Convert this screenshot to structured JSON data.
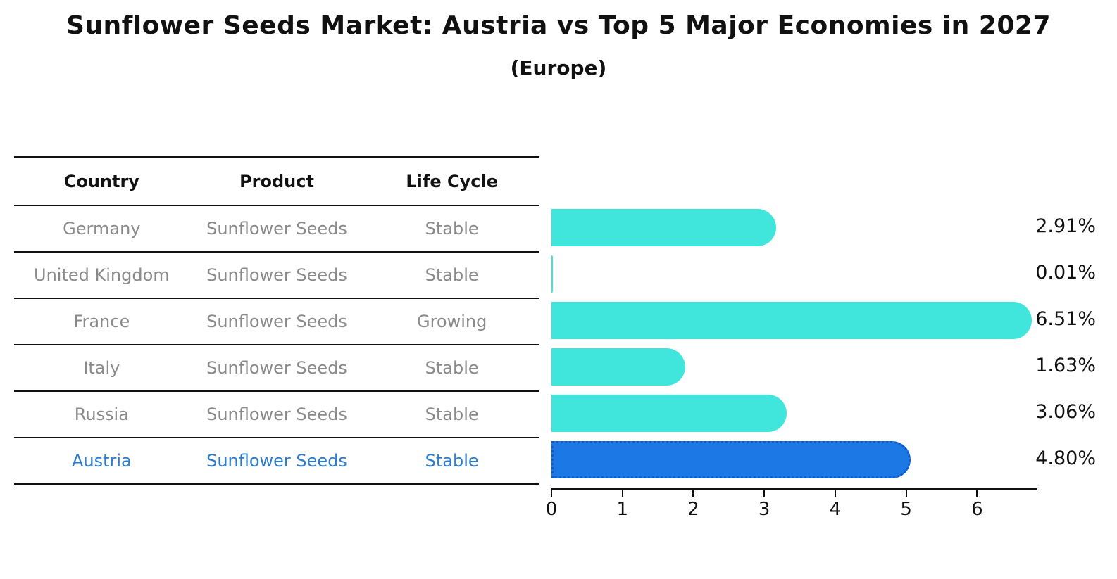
{
  "title": "Sunflower Seeds Market: Austria vs Top 5 Major Economies in 2027",
  "subtitle": "(Europe)",
  "table": {
    "headers": [
      "Country",
      "Product",
      "Life Cycle"
    ],
    "rows": [
      {
        "country": "Germany",
        "product": "Sunflower Seeds",
        "life_cycle": "Stable",
        "highlight": false
      },
      {
        "country": "United Kingdom",
        "product": "Sunflower Seeds",
        "life_cycle": "Stable",
        "highlight": false
      },
      {
        "country": "France",
        "product": "Sunflower Seeds",
        "life_cycle": "Growing",
        "highlight": false
      },
      {
        "country": "Italy",
        "product": "Sunflower Seeds",
        "life_cycle": "Stable",
        "highlight": false
      },
      {
        "country": "Russia",
        "product": "Sunflower Seeds",
        "life_cycle": "Stable",
        "highlight": false
      },
      {
        "country": "Austria",
        "product": "Sunflower Seeds",
        "life_cycle": "Stable",
        "highlight": true
      }
    ]
  },
  "chart_data": {
    "type": "bar",
    "orientation": "horizontal",
    "title": "Sunflower Seeds Market: Austria vs Top 5 Major Economies in 2027",
    "subtitle": "(Europe)",
    "categories": [
      "Germany",
      "United Kingdom",
      "France",
      "Italy",
      "Russia",
      "Austria"
    ],
    "values": [
      2.91,
      0.01,
      6.51,
      1.63,
      3.06,
      4.8
    ],
    "labels": [
      "2.91%",
      "0.01%",
      "6.51%",
      "1.63%",
      "3.06%",
      "4.80%"
    ],
    "highlight_category": "Austria",
    "xlim": [
      0,
      6.85
    ],
    "xticks": [
      0,
      1,
      2,
      3,
      4,
      5,
      6
    ],
    "grid": false,
    "legend": false,
    "colors": {
      "bar": "#40e6dc",
      "highlight_bar": "#1c78e4",
      "highlight_border": "#0f5bc9",
      "row_text": "#8a8a8a",
      "highlight_text": "#2b7cce",
      "axis": "#111111",
      "value_text": "#111111"
    }
  }
}
